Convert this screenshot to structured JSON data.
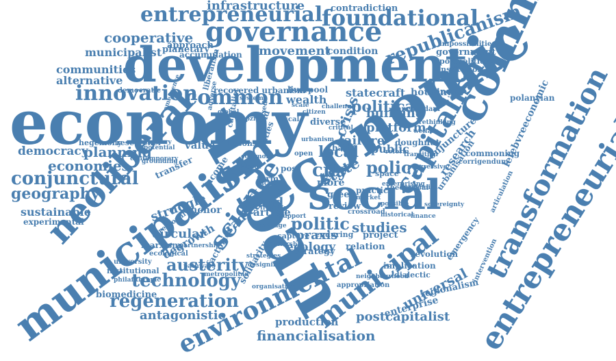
{
  "color": "#4a7fb0",
  "words": [
    "economy",
    "development",
    "urban",
    "economic",
    "community",
    "municipalism",
    "social",
    "governance",
    "entrepreneurial",
    "foundational",
    "neoliberal",
    "capitalism",
    "transformation",
    "entrepreneurialism",
    "environmental",
    "municipal",
    "innovation",
    "common",
    "republicanism",
    "science",
    "regeneration",
    "technology",
    "austerity",
    "conjunctural",
    "geography",
    "economies",
    "planning",
    "democracy",
    "communities",
    "alternative",
    "cooperative",
    "municipalist",
    "planetary",
    "movement",
    "condition",
    "infrastructure",
    "contradiction",
    "political",
    "policy",
    "city",
    "local",
    "crisis",
    "platform",
    "building",
    "failure",
    "public",
    "state",
    "politic",
    "financialisation",
    "postcapitalist",
    "production",
    "antagonistic",
    "biomedicine",
    "sustainable",
    "experimental",
    "circular",
    "struggle",
    "degrowth",
    "value",
    "transfer",
    "wealth",
    "statecraft",
    "housing",
    "lefebvreeconomic",
    "polanyian",
    "government",
    "postpolitics",
    "institution",
    "impossibilities",
    "research",
    "conjuncture",
    "urbanisation",
    "universal",
    "enterprise",
    "regionalism",
    "emergency",
    "studies",
    "praxis",
    "ecology",
    "land",
    "article",
    "form",
    "post",
    "basic",
    "diverse",
    "doughnut",
    "income",
    "radical",
    "work",
    "capture",
    "relation",
    "project",
    "space",
    "strategy",
    "enduring",
    "marxism",
    "ecological",
    "university",
    "institutional",
    "hegemony",
    "researcher",
    "implication",
    "dialectic",
    "revolution",
    "commoning",
    "articulation",
    "intervention",
    "approach",
    "accumulation",
    "democratic",
    "recovered urbanism",
    "liverpool",
    "financing",
    "anchor",
    "factories",
    "solidarity",
    "more",
    "green",
    "review",
    "crossroad",
    "appropriation",
    "stock",
    "practice",
    "amsterdam",
    "cities",
    "world",
    "lessons",
    "capitalist",
    "open",
    "mixed",
    "liberalism",
    "theoretical",
    "regional",
    "contemporary",
    "fiscal",
    "framing",
    "support",
    "possible",
    "citizen",
    "global",
    "adverse",
    "corrigendum",
    "systems",
    "commentary",
    "potential",
    "grounding",
    "ownership",
    "leipzig",
    "metropolitan",
    "neighbourhood",
    "organisation",
    "partnership",
    "strategies",
    "designing",
    "mortgage",
    "philanthropic",
    "pathways",
    "enterprising",
    "emergence",
    "critical",
    "finance",
    "challenge",
    "rethinking",
    "scale",
    "welfare",
    "labour",
    "action",
    "market",
    "reform",
    "proximity",
    "historical",
    "sovereignty",
    "transition",
    "urbanism",
    "commons",
    "progressive"
  ]
}
